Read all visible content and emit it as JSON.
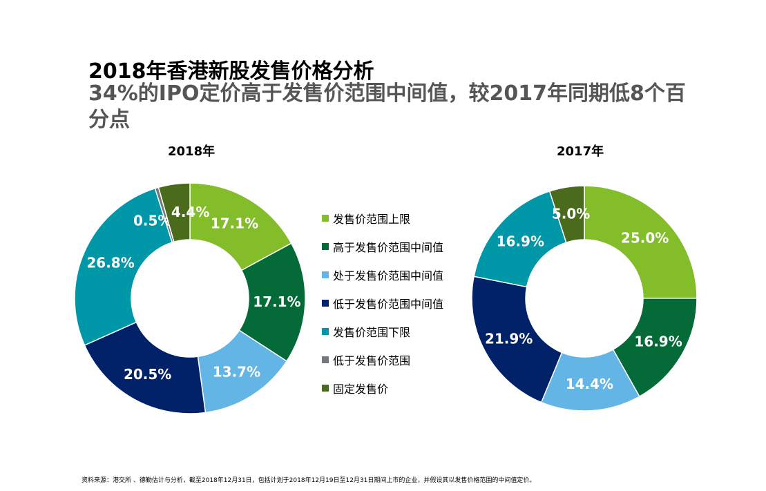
{
  "title": "2018年香港新股发售价格分析",
  "subtitle": "34%的IPO定价高于发售价范围中间值，较2017年同期低8个百分点",
  "source": "资料来源：港交所 、德勤估计与分析，截至2018年12月31日，包括计划于2018年12月19日至12月31日期间上市的企业，并假设其以发售价格范围的中间值定价。",
  "chart_data": {
    "type": "pie",
    "legend": {
      "placement": "center",
      "entries": [
        "发售价范围上限",
        "高于发售价范围中间值",
        "处于发售价范围中间值",
        "低于发售价范围中间值",
        "发售价范围下限",
        "低于发售价范围",
        "固定发售价"
      ]
    },
    "colors": [
      "#84bd2a",
      "#046a38",
      "#62b5e5",
      "#012169",
      "#0097a9",
      "#75787b",
      "#4a6a1c"
    ],
    "charts": [
      {
        "title": "2018年",
        "values": [
          17.1,
          17.1,
          13.7,
          20.5,
          26.8,
          0.5,
          4.4
        ],
        "labels": [
          "17.1%",
          "17.1%",
          "13.7%",
          "20.5%",
          "26.8%",
          "0.5%",
          "4.4%"
        ]
      },
      {
        "title": "2017年",
        "values": [
          25.0,
          16.9,
          14.4,
          21.9,
          16.9,
          0,
          5.0
        ],
        "labels": [
          "25.0%",
          "16.9%",
          "14.4%",
          "21.9%",
          "16.9%",
          "",
          "5.0%"
        ]
      }
    ]
  }
}
